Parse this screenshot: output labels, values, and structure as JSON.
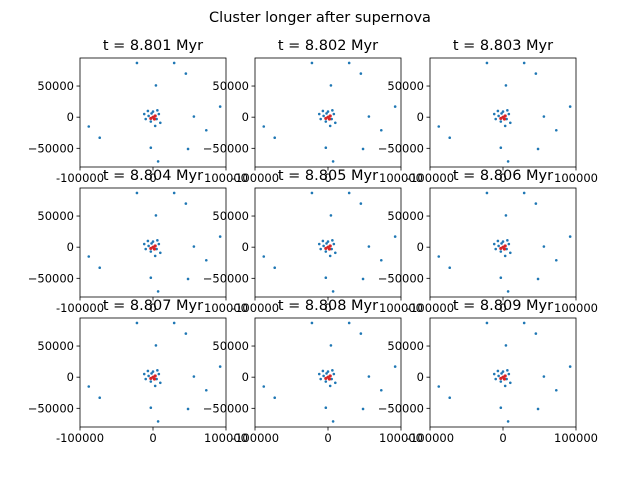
{
  "figure": {
    "title": "Cluster longer after supernova"
  },
  "chart_data": {
    "type": "scatter",
    "grid": false,
    "xlim": [
      -100000,
      100000
    ],
    "ylim": [
      -80000,
      95000
    ],
    "xticks": [
      -100000,
      0,
      100000
    ],
    "yticks": [
      -50000,
      0,
      50000
    ],
    "xtick_labels": [
      "-100000",
      "0",
      "100000"
    ],
    "ytick_labels": [
      "−50000",
      "0",
      "50000"
    ],
    "colors": {
      "stars": "#1f77b4",
      "remnant": "#d62728",
      "frame": "#000000"
    },
    "star_points": [
      [
        -22000,
        87000
      ],
      [
        29000,
        87000
      ],
      [
        45000,
        70000
      ],
      [
        4000,
        51000
      ],
      [
        92000,
        17000
      ],
      [
        56000,
        1000
      ],
      [
        -88000,
        -15000
      ],
      [
        73000,
        -21000
      ],
      [
        -73000,
        -33000
      ],
      [
        -3000,
        -49000
      ],
      [
        48000,
        -51000
      ],
      [
        7000,
        -71000
      ],
      [
        -7000,
        10000
      ],
      [
        8000,
        5000
      ],
      [
        -10000,
        -3000
      ],
      [
        -3000,
        -7000
      ],
      [
        10000,
        -9000
      ],
      [
        -6000,
        2000
      ],
      [
        5000,
        -3000
      ],
      [
        0,
        9000
      ],
      [
        -12000,
        5000
      ],
      [
        3000,
        -14000
      ],
      [
        -2000,
        6000
      ],
      [
        6000,
        11000
      ]
    ],
    "remnant_points": [
      [
        0,
        0
      ],
      [
        3000,
        2000
      ],
      [
        -3000,
        -2000
      ],
      [
        2000,
        -3000
      ]
    ],
    "panels": [
      {
        "title": "t = 8.801 Myr"
      },
      {
        "title": "t = 8.802 Myr"
      },
      {
        "title": "t = 8.803 Myr"
      },
      {
        "title": "t = 8.804 Myr"
      },
      {
        "title": "t = 8.805 Myr"
      },
      {
        "title": "t = 8.806 Myr"
      },
      {
        "title": "t = 8.807 Myr"
      },
      {
        "title": "t = 8.808 Myr"
      },
      {
        "title": "t = 8.809 Myr"
      }
    ]
  }
}
